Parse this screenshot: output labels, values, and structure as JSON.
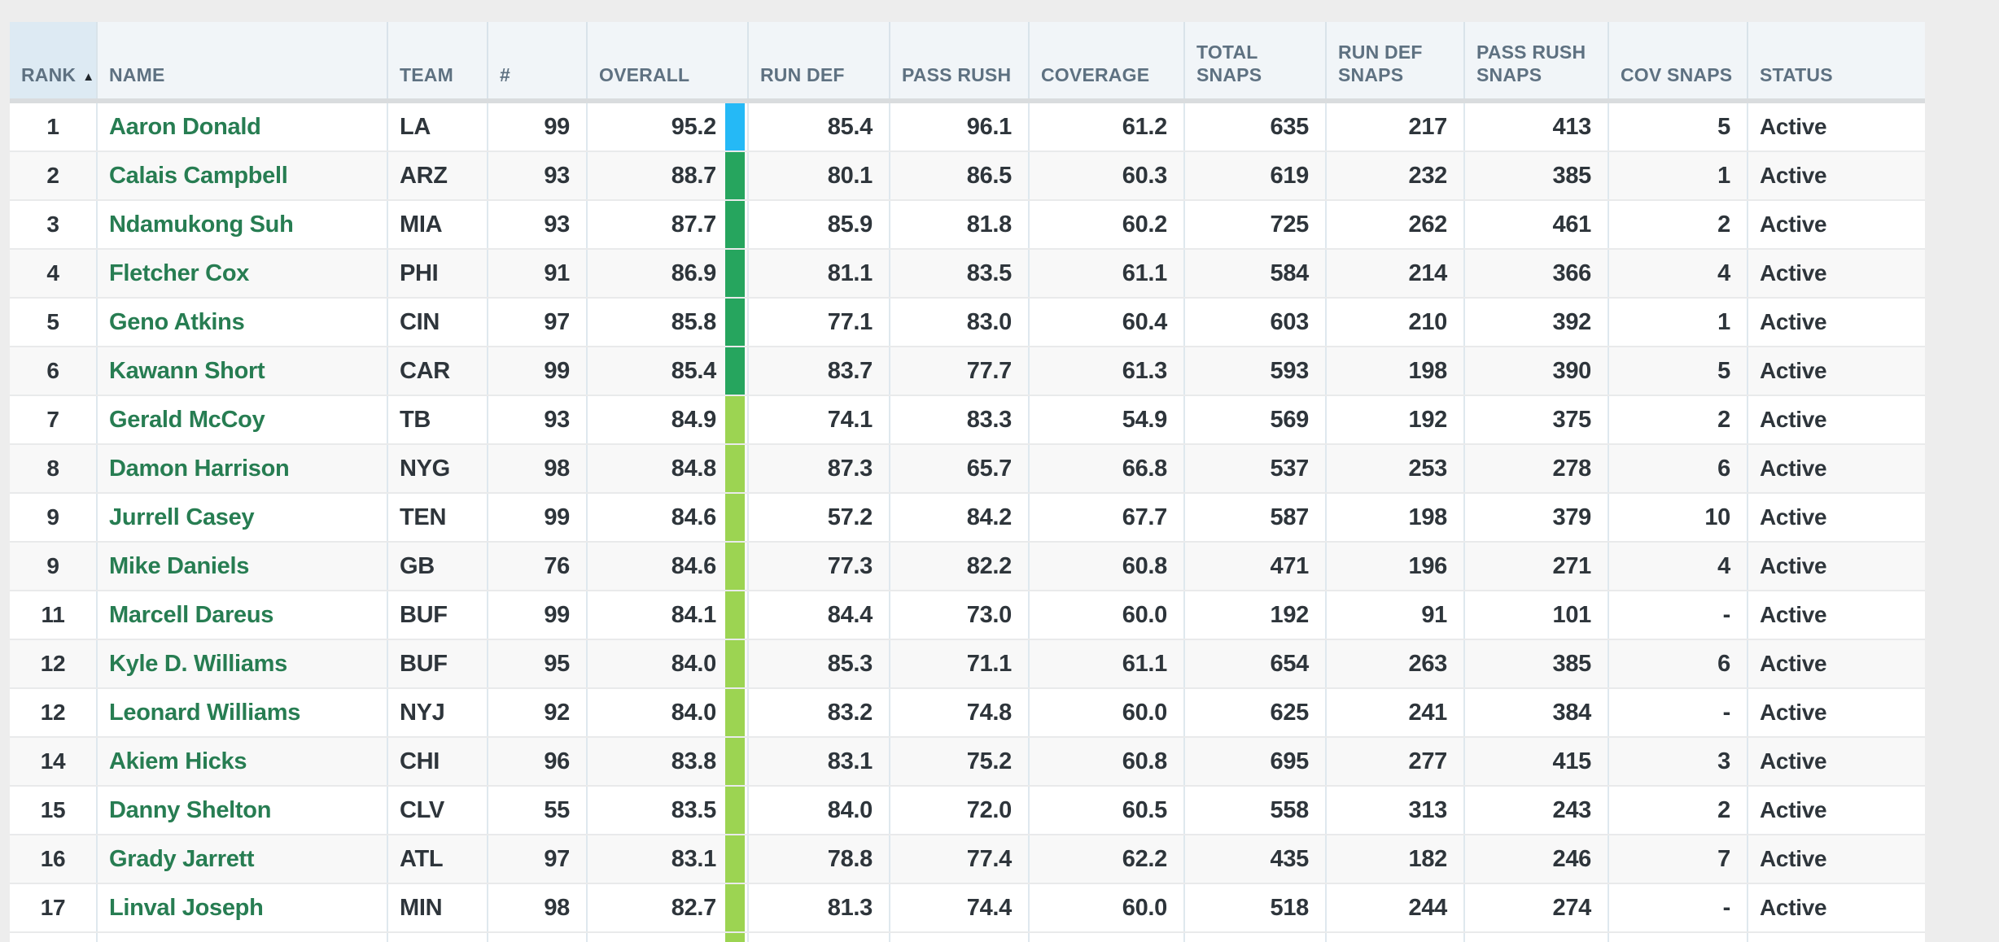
{
  "page": {
    "background": "#ededed"
  },
  "table": {
    "header": {
      "columns": [
        {
          "id": "rank",
          "label": "RANK",
          "sorted": "asc",
          "align": "left"
        },
        {
          "id": "name",
          "label": "NAME",
          "sorted": null,
          "align": "left"
        },
        {
          "id": "team",
          "label": "TEAM",
          "sorted": null,
          "align": "left"
        },
        {
          "id": "jersey",
          "label": "#",
          "sorted": null,
          "align": "left"
        },
        {
          "id": "overall",
          "label": "OVERALL",
          "sorted": null,
          "align": "left"
        },
        {
          "id": "run_def",
          "label": "RUN DEF",
          "sorted": null,
          "align": "left"
        },
        {
          "id": "pass_rush",
          "label": "PASS RUSH",
          "sorted": null,
          "align": "left"
        },
        {
          "id": "coverage",
          "label": "COVERAGE",
          "sorted": null,
          "align": "left"
        },
        {
          "id": "total_snaps",
          "label": "TOTAL SNAPS",
          "sorted": null,
          "align": "left"
        },
        {
          "id": "run_def_snaps",
          "label": "RUN DEF SNAPS",
          "sorted": null,
          "align": "left"
        },
        {
          "id": "pass_rush_snaps",
          "label": "PASS RUSH SNAPS",
          "sorted": null,
          "align": "left"
        },
        {
          "id": "cov_snaps",
          "label": "COV SNAPS",
          "sorted": null,
          "align": "left"
        },
        {
          "id": "status",
          "label": "STATUS",
          "sorted": null,
          "align": "left"
        }
      ],
      "sort_icon": "▲"
    },
    "grade_colors": {
      "elite": "#25b9f6",
      "high": "#26a55e",
      "good": "#9cd452"
    },
    "text_colors": {
      "player_link": "#277d52",
      "header_text": "#5e7181",
      "cell_text": "#2e353b"
    },
    "rows": [
      {
        "rank": "1",
        "name": "Aaron Donald",
        "team": "LA",
        "jersey": "99",
        "overall": "95.2",
        "grade": "elite",
        "run_def": "85.4",
        "pass_rush": "96.1",
        "coverage": "61.2",
        "total_snaps": "635",
        "run_def_snaps": "217",
        "pass_rush_snaps": "413",
        "cov_snaps": "5",
        "status": "Active"
      },
      {
        "rank": "2",
        "name": "Calais Campbell",
        "team": "ARZ",
        "jersey": "93",
        "overall": "88.7",
        "grade": "high",
        "run_def": "80.1",
        "pass_rush": "86.5",
        "coverage": "60.3",
        "total_snaps": "619",
        "run_def_snaps": "232",
        "pass_rush_snaps": "385",
        "cov_snaps": "1",
        "status": "Active"
      },
      {
        "rank": "3",
        "name": "Ndamukong Suh",
        "team": "MIA",
        "jersey": "93",
        "overall": "87.7",
        "grade": "high",
        "run_def": "85.9",
        "pass_rush": "81.8",
        "coverage": "60.2",
        "total_snaps": "725",
        "run_def_snaps": "262",
        "pass_rush_snaps": "461",
        "cov_snaps": "2",
        "status": "Active"
      },
      {
        "rank": "4",
        "name": "Fletcher Cox",
        "team": "PHI",
        "jersey": "91",
        "overall": "86.9",
        "grade": "high",
        "run_def": "81.1",
        "pass_rush": "83.5",
        "coverage": "61.1",
        "total_snaps": "584",
        "run_def_snaps": "214",
        "pass_rush_snaps": "366",
        "cov_snaps": "4",
        "status": "Active"
      },
      {
        "rank": "5",
        "name": "Geno Atkins",
        "team": "CIN",
        "jersey": "97",
        "overall": "85.8",
        "grade": "high",
        "run_def": "77.1",
        "pass_rush": "83.0",
        "coverage": "60.4",
        "total_snaps": "603",
        "run_def_snaps": "210",
        "pass_rush_snaps": "392",
        "cov_snaps": "1",
        "status": "Active"
      },
      {
        "rank": "6",
        "name": "Kawann Short",
        "team": "CAR",
        "jersey": "99",
        "overall": "85.4",
        "grade": "high",
        "run_def": "83.7",
        "pass_rush": "77.7",
        "coverage": "61.3",
        "total_snaps": "593",
        "run_def_snaps": "198",
        "pass_rush_snaps": "390",
        "cov_snaps": "5",
        "status": "Active"
      },
      {
        "rank": "7",
        "name": "Gerald McCoy",
        "team": "TB",
        "jersey": "93",
        "overall": "84.9",
        "grade": "good",
        "run_def": "74.1",
        "pass_rush": "83.3",
        "coverage": "54.9",
        "total_snaps": "569",
        "run_def_snaps": "192",
        "pass_rush_snaps": "375",
        "cov_snaps": "2",
        "status": "Active"
      },
      {
        "rank": "8",
        "name": "Damon Harrison",
        "team": "NYG",
        "jersey": "98",
        "overall": "84.8",
        "grade": "good",
        "run_def": "87.3",
        "pass_rush": "65.7",
        "coverage": "66.8",
        "total_snaps": "537",
        "run_def_snaps": "253",
        "pass_rush_snaps": "278",
        "cov_snaps": "6",
        "status": "Active"
      },
      {
        "rank": "9",
        "name": "Jurrell Casey",
        "team": "TEN",
        "jersey": "99",
        "overall": "84.6",
        "grade": "good",
        "run_def": "57.2",
        "pass_rush": "84.2",
        "coverage": "67.7",
        "total_snaps": "587",
        "run_def_snaps": "198",
        "pass_rush_snaps": "379",
        "cov_snaps": "10",
        "status": "Active"
      },
      {
        "rank": "9",
        "name": "Mike Daniels",
        "team": "GB",
        "jersey": "76",
        "overall": "84.6",
        "grade": "good",
        "run_def": "77.3",
        "pass_rush": "82.2",
        "coverage": "60.8",
        "total_snaps": "471",
        "run_def_snaps": "196",
        "pass_rush_snaps": "271",
        "cov_snaps": "4",
        "status": "Active"
      },
      {
        "rank": "11",
        "name": "Marcell Dareus",
        "team": "BUF",
        "jersey": "99",
        "overall": "84.1",
        "grade": "good",
        "run_def": "84.4",
        "pass_rush": "73.0",
        "coverage": "60.0",
        "total_snaps": "192",
        "run_def_snaps": "91",
        "pass_rush_snaps": "101",
        "cov_snaps": "-",
        "status": "Active"
      },
      {
        "rank": "12",
        "name": "Kyle D. Williams",
        "team": "BUF",
        "jersey": "95",
        "overall": "84.0",
        "grade": "good",
        "run_def": "85.3",
        "pass_rush": "71.1",
        "coverage": "61.1",
        "total_snaps": "654",
        "run_def_snaps": "263",
        "pass_rush_snaps": "385",
        "cov_snaps": "6",
        "status": "Active"
      },
      {
        "rank": "12",
        "name": "Leonard Williams",
        "team": "NYJ",
        "jersey": "92",
        "overall": "84.0",
        "grade": "good",
        "run_def": "83.2",
        "pass_rush": "74.8",
        "coverage": "60.0",
        "total_snaps": "625",
        "run_def_snaps": "241",
        "pass_rush_snaps": "384",
        "cov_snaps": "-",
        "status": "Active"
      },
      {
        "rank": "14",
        "name": "Akiem Hicks",
        "team": "CHI",
        "jersey": "96",
        "overall": "83.8",
        "grade": "good",
        "run_def": "83.1",
        "pass_rush": "75.2",
        "coverage": "60.8",
        "total_snaps": "695",
        "run_def_snaps": "277",
        "pass_rush_snaps": "415",
        "cov_snaps": "3",
        "status": "Active"
      },
      {
        "rank": "15",
        "name": "Danny Shelton",
        "team": "CLV",
        "jersey": "55",
        "overall": "83.5",
        "grade": "good",
        "run_def": "84.0",
        "pass_rush": "72.0",
        "coverage": "60.5",
        "total_snaps": "558",
        "run_def_snaps": "313",
        "pass_rush_snaps": "243",
        "cov_snaps": "2",
        "status": "Active"
      },
      {
        "rank": "16",
        "name": "Grady Jarrett",
        "team": "ATL",
        "jersey": "97",
        "overall": "83.1",
        "grade": "good",
        "run_def": "78.8",
        "pass_rush": "77.4",
        "coverage": "62.2",
        "total_snaps": "435",
        "run_def_snaps": "182",
        "pass_rush_snaps": "246",
        "cov_snaps": "7",
        "status": "Active"
      },
      {
        "rank": "17",
        "name": "Linval Joseph",
        "team": "MIN",
        "jersey": "98",
        "overall": "82.7",
        "grade": "good",
        "run_def": "81.3",
        "pass_rush": "74.4",
        "coverage": "60.0",
        "total_snaps": "518",
        "run_def_snaps": "244",
        "pass_rush_snaps": "274",
        "cov_snaps": "-",
        "status": "Active"
      }
    ],
    "partial_row": {
      "grade": "good"
    }
  }
}
